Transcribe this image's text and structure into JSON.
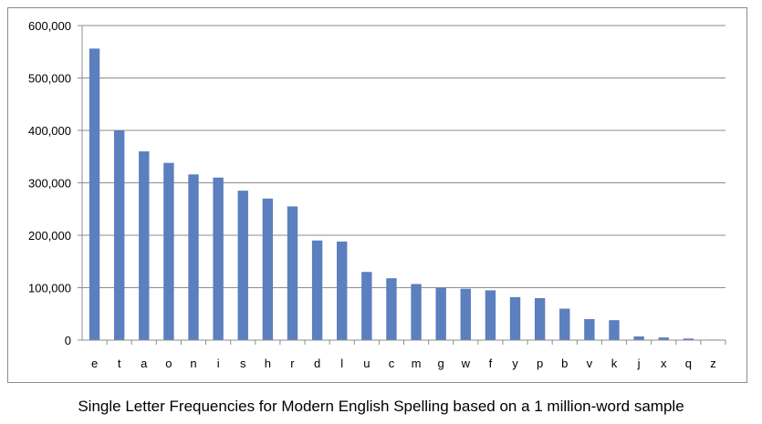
{
  "caption": "Single Letter Frequencies for Modern English Spelling based on a 1 million-word sample",
  "colors": {
    "bar": "#5b7fbf",
    "grid": "#8c8c8c",
    "axis": "#8c8c8c",
    "frame": "#8c8c8c"
  },
  "chart_data": {
    "type": "bar",
    "title": "",
    "xlabel": "",
    "ylabel": "",
    "categories": [
      "e",
      "t",
      "a",
      "o",
      "n",
      "i",
      "s",
      "h",
      "r",
      "d",
      "l",
      "u",
      "c",
      "m",
      "g",
      "w",
      "f",
      "y",
      "p",
      "b",
      "v",
      "k",
      "j",
      "x",
      "q",
      "z"
    ],
    "values": [
      556000,
      400000,
      360000,
      338000,
      316000,
      310000,
      285000,
      270000,
      255000,
      190000,
      188000,
      130000,
      118000,
      107000,
      100000,
      98000,
      95000,
      82000,
      80000,
      60000,
      40000,
      38000,
      7000,
      5000,
      3000,
      1000
    ],
    "ylim": [
      0,
      600000
    ],
    "yticks": [
      0,
      100000,
      200000,
      300000,
      400000,
      500000,
      600000
    ],
    "ytick_labels": [
      "0",
      "100,000",
      "200,000",
      "300,000",
      "400,000",
      "500,000",
      "600,000"
    ],
    "grid": true,
    "legend": "none"
  }
}
